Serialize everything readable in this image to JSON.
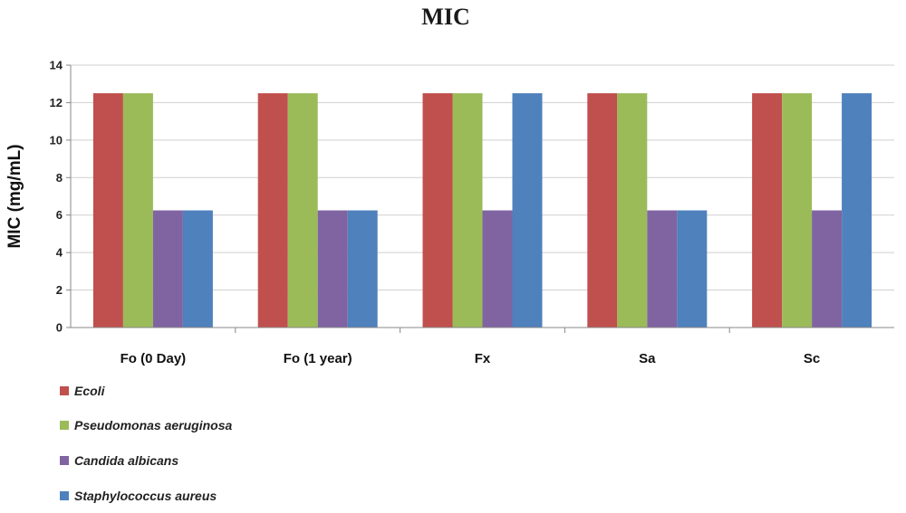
{
  "chart_data": {
    "type": "bar",
    "title": "MIC",
    "ylabel": "MIC (mg/mL)",
    "xlabel": "",
    "ylim": [
      0,
      14
    ],
    "yticks": [
      0,
      2,
      4,
      6,
      8,
      10,
      12,
      14
    ],
    "grid": true,
    "legend_position": "bottom-left",
    "categories": [
      "Fo (0 Day)",
      "Fo (1 year)",
      "Fx",
      "Sa",
      "Sc"
    ],
    "series": [
      {
        "name": "Ecoli",
        "color": "#c0504d",
        "values": [
          12.5,
          12.5,
          12.5,
          12.5,
          12.5
        ]
      },
      {
        "name": "Pseudomonas aeruginosa",
        "color": "#9bbb59",
        "values": [
          12.5,
          12.5,
          12.5,
          12.5,
          12.5
        ]
      },
      {
        "name": "Candida albicans",
        "color": "#8064a2",
        "values": [
          6.25,
          6.25,
          6.25,
          6.25,
          6.25
        ]
      },
      {
        "name": "Staphylococcus aureus",
        "color": "#4f81bd",
        "values": [
          6.25,
          6.25,
          12.5,
          6.25,
          12.5
        ]
      }
    ]
  }
}
